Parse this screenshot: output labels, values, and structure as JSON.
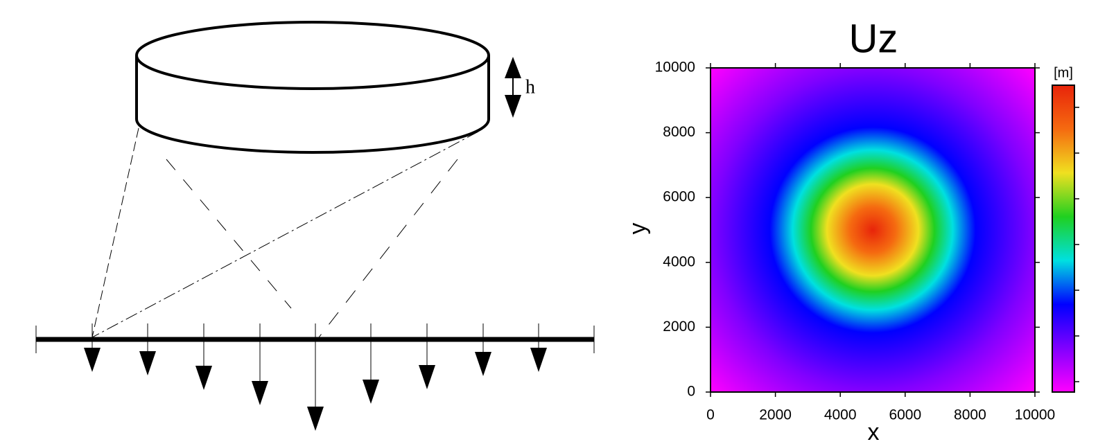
{
  "diagram": {
    "height_label": "h"
  },
  "chart_data": {
    "type": "heatmap",
    "title": "Uz",
    "xlabel": "x",
    "ylabel": "y",
    "colorbar_label": "[m]",
    "xlim": [
      0,
      10000
    ],
    "ylim": [
      0,
      10000
    ],
    "xticks": [
      0,
      2000,
      4000,
      6000,
      8000,
      10000
    ],
    "yticks": [
      0,
      2000,
      4000,
      6000,
      8000,
      10000
    ],
    "peak": {
      "x": 5000,
      "y": 5000
    },
    "colormap": [
      "#ff00ff",
      "#8000ff",
      "#0000ff",
      "#00e0e0",
      "#20d020",
      "#f0e020",
      "#f56a10",
      "#e8240a"
    ]
  }
}
